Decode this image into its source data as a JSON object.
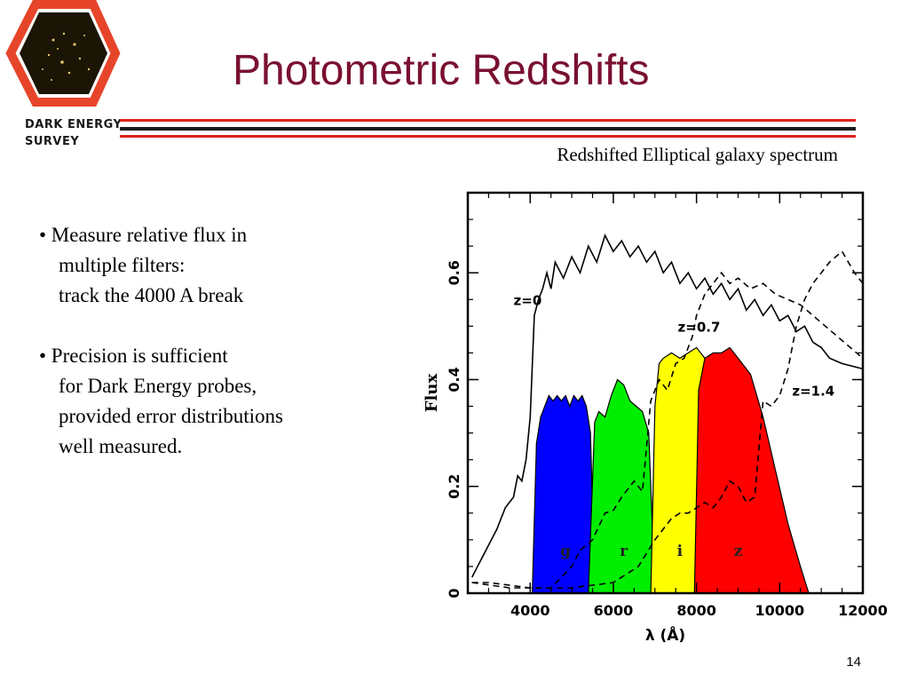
{
  "slide": {
    "title": "Photometric Redshifts",
    "page_number": "14"
  },
  "logo": {
    "line1": "DARK ENERGY",
    "line2": "SURVEY"
  },
  "figure_caption": "Redshifted Elliptical galaxy spectrum",
  "bullets": [
    {
      "lines": [
        "• Measure relative flux in",
        "multiple filters:",
        "track the 4000 A break"
      ]
    },
    {
      "lines": [
        "• Precision is sufficient",
        "for Dark Energy probes,",
        "provided error distributions",
        "well measured."
      ]
    }
  ],
  "colors": {
    "title": "#7a1030",
    "rule_red": "#e0201e",
    "rule_dark": "#1a1a1a",
    "filter_g": "#0000ff",
    "filter_r": "#00ee00",
    "filter_i": "#ffff00",
    "filter_z": "#ff0000"
  },
  "chart_data": {
    "type": "line",
    "xlabel": "λ (Å)",
    "ylabel": "Flux",
    "xlim": [
      2500,
      12000
    ],
    "ylim": [
      0,
      0.75
    ],
    "xticks": [
      4000,
      6000,
      8000,
      10000,
      12000
    ],
    "yticks": [
      0,
      0.2,
      0.4,
      0.6
    ],
    "series": [
      {
        "name": "z=0",
        "style": "solid",
        "x": [
          2600,
          3000,
          3200,
          3400,
          3600,
          3700,
          3800,
          3900,
          4000,
          4100,
          4200,
          4300,
          4400,
          4500,
          4600,
          4800,
          5000,
          5200,
          5400,
          5600,
          5800,
          6000,
          6200,
          6400,
          6600,
          6800,
          7000,
          7200,
          7400,
          7600,
          7800,
          8000,
          8200,
          8400,
          8600,
          8800,
          9000,
          9200,
          9400,
          9600,
          9800,
          10000,
          10200,
          10400,
          10600,
          10800,
          11000,
          11200,
          11500,
          12000
        ],
        "y": [
          0.03,
          0.09,
          0.12,
          0.16,
          0.18,
          0.22,
          0.21,
          0.25,
          0.33,
          0.52,
          0.55,
          0.57,
          0.6,
          0.57,
          0.62,
          0.59,
          0.63,
          0.6,
          0.65,
          0.62,
          0.67,
          0.64,
          0.66,
          0.63,
          0.65,
          0.62,
          0.64,
          0.6,
          0.62,
          0.58,
          0.6,
          0.57,
          0.59,
          0.56,
          0.58,
          0.55,
          0.57,
          0.53,
          0.55,
          0.52,
          0.54,
          0.51,
          0.52,
          0.49,
          0.5,
          0.47,
          0.46,
          0.44,
          0.43,
          0.42
        ]
      },
      {
        "name": "z=0.7",
        "style": "dashed",
        "x": [
          2600,
          3500,
          4000,
          4500,
          5000,
          5200,
          5500,
          5800,
          6000,
          6200,
          6500,
          6700,
          6900,
          7100,
          7300,
          7500,
          7700,
          7900,
          8000,
          8200,
          8400,
          8600,
          8800,
          9000,
          9300,
          9600,
          9900,
          10200,
          10500,
          10800,
          11100,
          11400,
          11700,
          12000
        ],
        "y": [
          0.02,
          0.01,
          0.01,
          0.01,
          0.05,
          0.08,
          0.1,
          0.15,
          0.155,
          0.18,
          0.21,
          0.19,
          0.36,
          0.4,
          0.38,
          0.43,
          0.44,
          0.48,
          0.52,
          0.56,
          0.58,
          0.6,
          0.58,
          0.59,
          0.57,
          0.58,
          0.56,
          0.55,
          0.54,
          0.52,
          0.5,
          0.48,
          0.46,
          0.44
        ]
      },
      {
        "name": "z=1.4",
        "style": "dashed",
        "x": [
          2600,
          3000,
          4000,
          5000,
          6000,
          6600,
          7000,
          7200,
          7400,
          7600,
          7800,
          8000,
          8200,
          8400,
          8600,
          8800,
          9000,
          9200,
          9400,
          9600,
          9800,
          10000,
          10200,
          10400,
          10600,
          10800,
          11000,
          11200,
          11500,
          11800,
          12000
        ],
        "y": [
          0.02,
          0.02,
          0.01,
          0.01,
          0.02,
          0.05,
          0.1,
          0.12,
          0.14,
          0.15,
          0.15,
          0.16,
          0.17,
          0.16,
          0.18,
          0.21,
          0.2,
          0.17,
          0.18,
          0.36,
          0.35,
          0.37,
          0.42,
          0.5,
          0.55,
          0.58,
          0.6,
          0.62,
          0.64,
          0.6,
          0.58
        ]
      }
    ],
    "filters": [
      {
        "name": "g",
        "color": "#0000ff",
        "x": [
          4050,
          4150,
          4250,
          4350,
          4450,
          4550,
          4650,
          4750,
          4850,
          4950,
          5050,
          5150,
          5250,
          5350,
          5450,
          5550
        ],
        "y": [
          0.0,
          0.28,
          0.33,
          0.35,
          0.37,
          0.36,
          0.37,
          0.36,
          0.37,
          0.35,
          0.37,
          0.36,
          0.37,
          0.35,
          0.3,
          0.0
        ]
      },
      {
        "name": "r",
        "color": "#00ee00",
        "x": [
          5400,
          5550,
          5650,
          5800,
          5950,
          6100,
          6250,
          6400,
          6550,
          6700,
          6850,
          7000
        ],
        "y": [
          0.0,
          0.32,
          0.34,
          0.33,
          0.37,
          0.4,
          0.39,
          0.36,
          0.35,
          0.34,
          0.3,
          0.0
        ]
      },
      {
        "name": "i",
        "color": "#ffff00",
        "x": [
          6900,
          7000,
          7100,
          7200,
          7400,
          7600,
          7800,
          8000,
          8200,
          8300,
          8400
        ],
        "y": [
          0.0,
          0.35,
          0.43,
          0.44,
          0.45,
          0.44,
          0.45,
          0.46,
          0.44,
          0.38,
          0.0
        ]
      },
      {
        "name": "z",
        "color": "#ff0000",
        "x": [
          7950,
          8050,
          8200,
          8400,
          8600,
          8800,
          9000,
          9300,
          9600,
          9900,
          10200,
          10500,
          10700
        ],
        "y": [
          0.0,
          0.38,
          0.44,
          0.45,
          0.45,
          0.46,
          0.44,
          0.41,
          0.33,
          0.23,
          0.13,
          0.05,
          0.0
        ]
      }
    ],
    "annotations": [
      {
        "text": "z=0",
        "x": 3600,
        "y": 0.54
      },
      {
        "text": "z=0.7",
        "x": 7550,
        "y": 0.49
      },
      {
        "text": "z=1.4",
        "x": 10300,
        "y": 0.37
      }
    ],
    "grid": false
  }
}
